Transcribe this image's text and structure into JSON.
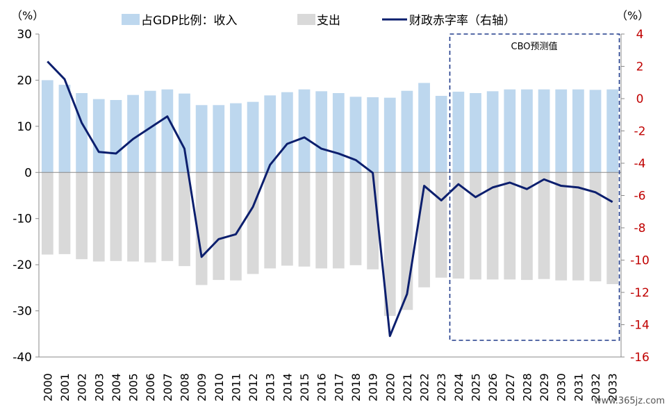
{
  "chart_data": {
    "type": "bar",
    "categories": [
      "2000",
      "2001",
      "2002",
      "2003",
      "2004",
      "2005",
      "2006",
      "2007",
      "2008",
      "2009",
      "2010",
      "2011",
      "2012",
      "2013",
      "2014",
      "2015",
      "2016",
      "2017",
      "2018",
      "2019",
      "2020",
      "2021",
      "2022",
      "2023",
      "2024",
      "2025",
      "2026",
      "2027",
      "2028",
      "2029",
      "2030",
      "2031",
      "2032",
      "2033"
    ],
    "series": [
      {
        "name": "占GDP比例：收入",
        "type": "bar",
        "axis": "left",
        "color": "#bdd7ee",
        "values": [
          20.0,
          19.0,
          17.2,
          15.9,
          15.7,
          16.8,
          17.7,
          18.0,
          17.1,
          14.6,
          14.6,
          15.0,
          15.3,
          16.7,
          17.4,
          18.0,
          17.6,
          17.2,
          16.4,
          16.3,
          16.2,
          17.7,
          19.4,
          16.6,
          17.5,
          17.2,
          17.6,
          18.0,
          18.0,
          18.0,
          18.0,
          18.0,
          17.9,
          18.0
        ]
      },
      {
        "name": "支出",
        "type": "bar",
        "axis": "left",
        "color": "#d9d9d9",
        "values": [
          -17.8,
          -17.7,
          -18.8,
          -19.3,
          -19.2,
          -19.3,
          -19.5,
          -19.2,
          -20.3,
          -24.4,
          -23.3,
          -23.4,
          -22.0,
          -20.8,
          -20.2,
          -20.4,
          -20.8,
          -20.8,
          -20.1,
          -21.0,
          -31.1,
          -29.8,
          -24.9,
          -22.8,
          -23.0,
          -23.2,
          -23.2,
          -23.2,
          -23.3,
          -23.1,
          -23.4,
          -23.4,
          -23.6,
          -24.2
        ]
      },
      {
        "name": "财政赤字率（右轴）",
        "type": "line",
        "axis": "right",
        "color": "#0c1f6e",
        "values": [
          2.3,
          1.2,
          -1.5,
          -3.3,
          -3.4,
          -2.5,
          -1.8,
          -1.1,
          -3.1,
          -9.8,
          -8.7,
          -8.4,
          -6.7,
          -4.1,
          -2.8,
          -2.4,
          -3.1,
          -3.4,
          -3.8,
          -4.6,
          -14.7,
          -12.1,
          -5.4,
          -6.3,
          -5.3,
          -6.1,
          -5.5,
          -5.2,
          -5.6,
          -5.0,
          -5.4,
          -5.5,
          -5.8,
          -6.4
        ]
      }
    ],
    "y_left": {
      "min": -40,
      "max": 30,
      "ticks": [
        30,
        20,
        10,
        0,
        -10,
        -20,
        -30,
        -40
      ],
      "unit": "（%）"
    },
    "y_right": {
      "min": -16,
      "max": 4,
      "ticks": [
        4,
        2,
        0,
        -2,
        -4,
        -6,
        -8,
        -10,
        -12,
        -14,
        -16
      ],
      "unit": "（%）",
      "tick_color": "#c00000"
    },
    "annotation": {
      "label": "CBO预测值",
      "from": "2024",
      "to": "2033",
      "style": "dashed-box",
      "color": "#1f3a8a"
    },
    "legend_position": "top",
    "grid": false
  },
  "watermark": "www.365jz.com"
}
